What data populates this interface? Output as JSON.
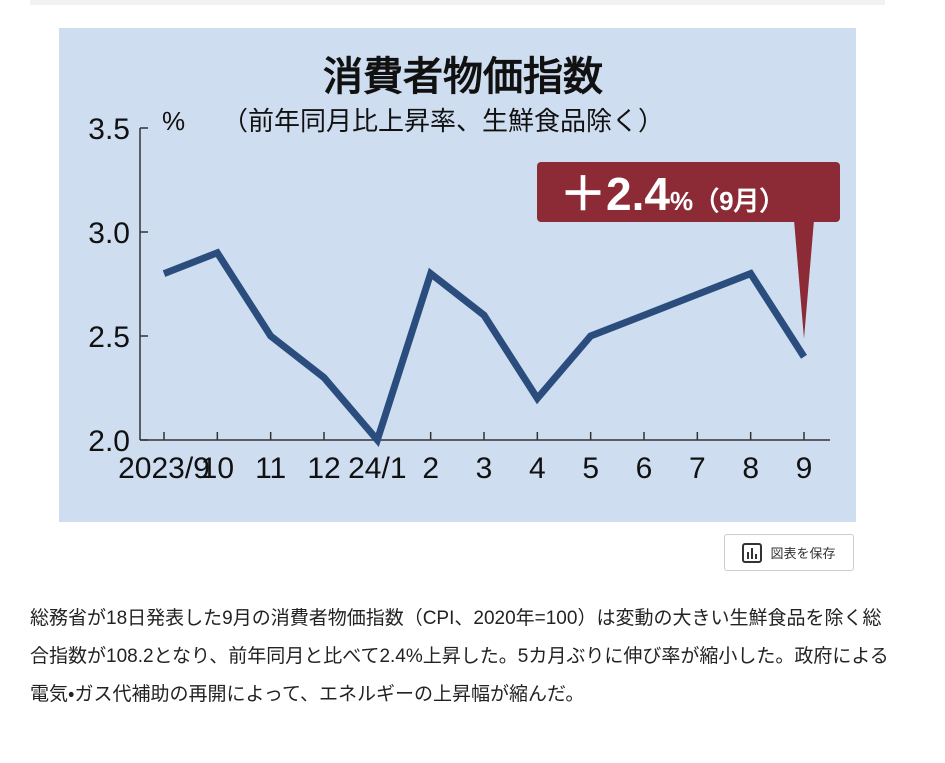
{
  "chart_data": {
    "type": "line",
    "title": "消費者物価指数",
    "y_unit": "%",
    "subtitle": "（前年同月比上昇率、生鮮食品除く）",
    "categories": [
      "2023/9",
      "10",
      "11",
      "12",
      "24/1",
      "2",
      "3",
      "4",
      "5",
      "6",
      "7",
      "8",
      "9"
    ],
    "values": [
      2.8,
      2.9,
      2.5,
      2.3,
      2.0,
      2.8,
      2.6,
      2.2,
      2.5,
      2.6,
      2.7,
      2.8,
      2.4
    ],
    "color": "#2b4d7e",
    "ylim": [
      2.0,
      3.5
    ],
    "yticks": [
      {
        "value": 2.0,
        "label": "2.0"
      },
      2.5,
      {
        "value": 3.0,
        "label": "3.0"
      },
      3.5
    ],
    "annotation": {
      "value_text": "＋2.4",
      "unit_text": "%（9月）",
      "color": "#8c2b36"
    }
  },
  "button": {
    "label": "図表を保存"
  },
  "article": {
    "text": "総務省が18日発表した9月の消費者物価指数（CPI、2020年=100）は変動の大きい生鮮食品を除く総合指数が108.2となり、前年同月と比べて2.4%上昇した。5カ月ぶりに伸び率が縮小した。政府による電気・ガス代補助の再開によって、エネルギーの上昇幅が縮んだ。"
  }
}
